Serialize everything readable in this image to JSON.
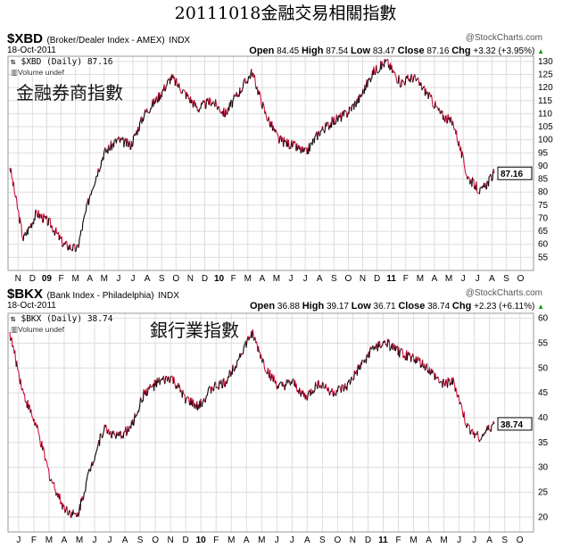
{
  "title": "20111018金融交易相關指數",
  "watermark": "@StockCharts.com",
  "chart_data": [
    {
      "type": "line",
      "symbol": "$XBD",
      "description": "(Broker/Dealer Index - AMEX)",
      "exchange": "INDX",
      "date": "18-Oct-2011",
      "open_label": "Open",
      "open": "84.45",
      "high_label": "High",
      "high": "87.54",
      "low_label": "Low",
      "low": "83.47",
      "close_label": "Close",
      "close": "87.16",
      "chg_label": "Chg",
      "chg": "+3.32 (+3.95%)",
      "legend": "$XBD (Daily) 87.16",
      "volume": "Volume undef",
      "annotation": "金融券商指數",
      "last_tag": "87.16",
      "ylim": [
        50,
        132
      ],
      "yticks": [
        55,
        60,
        65,
        70,
        75,
        80,
        85,
        90,
        95,
        100,
        105,
        110,
        115,
        120,
        125,
        130
      ],
      "x_ticks": [
        "N",
        "D",
        "09",
        "F",
        "M",
        "A",
        "M",
        "J",
        "J",
        "A",
        "S",
        "O",
        "N",
        "D",
        "10",
        "F",
        "M",
        "A",
        "M",
        "J",
        "J",
        "A",
        "S",
        "O",
        "N",
        "D",
        "11",
        "F",
        "M",
        "A",
        "M",
        "J",
        "J",
        "A",
        "S",
        "O"
      ],
      "monthly_values": [
        90,
        62,
        72,
        68,
        60,
        58,
        80,
        95,
        100,
        98,
        110,
        116,
        124,
        118,
        112,
        115,
        110,
        118,
        126,
        110,
        100,
        98,
        95,
        103,
        107,
        110,
        116,
        126,
        130,
        122,
        124,
        118,
        110,
        106,
        86,
        80,
        87.16
      ]
    },
    {
      "type": "line",
      "symbol": "$BKX",
      "description": "(Bank Index - Philadelphia)",
      "exchange": "INDX",
      "date": "18-Oct-2011",
      "open_label": "Open",
      "open": "36.88",
      "high_label": "High",
      "high": "39.17",
      "low_label": "Low",
      "low": "36.71",
      "close_label": "Close",
      "close": "38.74",
      "chg_label": "Chg",
      "chg": "+2.23 (+6.11%)",
      "legend": "$BKX (Daily) 38.74",
      "volume": "Volume undef",
      "annotation": "銀行業指數",
      "last_tag": "38.74",
      "ylim": [
        17,
        61
      ],
      "yticks": [
        20,
        25,
        30,
        35,
        40,
        45,
        50,
        55,
        60
      ],
      "x_ticks": [
        "J",
        "F",
        "M",
        "A",
        "M",
        "J",
        "J",
        "A",
        "S",
        "O",
        "N",
        "D",
        "10",
        "F",
        "M",
        "A",
        "M",
        "J",
        "J",
        "A",
        "S",
        "O",
        "N",
        "D",
        "11",
        "F",
        "M",
        "A",
        "M",
        "J",
        "J",
        "A",
        "S",
        "O"
      ],
      "monthly_values": [
        57,
        45,
        38,
        28,
        22,
        20,
        30,
        38,
        36,
        38,
        45,
        47,
        48,
        44,
        42,
        46,
        47,
        52,
        57,
        50,
        46,
        47,
        44,
        47,
        45,
        46,
        50,
        54,
        55,
        53,
        52,
        50,
        47,
        47,
        38,
        36,
        38.74
      ]
    }
  ]
}
